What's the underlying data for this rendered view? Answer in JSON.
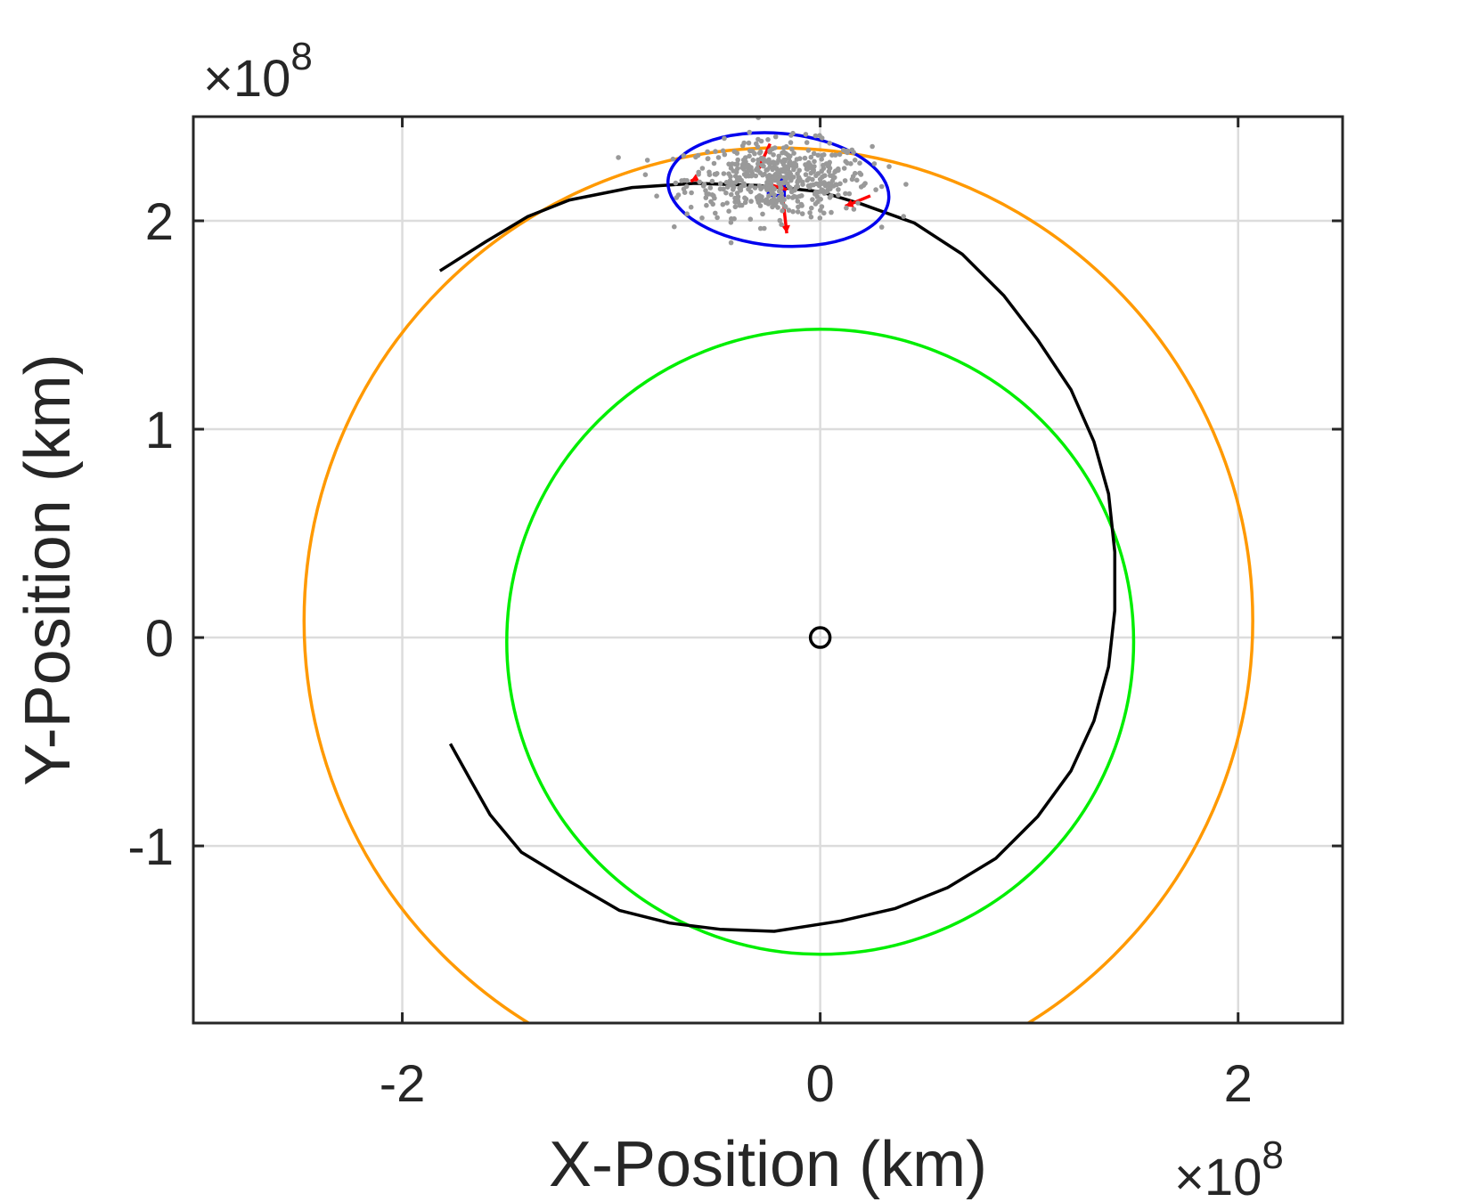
{
  "chart_data": {
    "type": "line",
    "title": "",
    "xlabel": "X-Position (km)",
    "ylabel": "Y-Position (km)",
    "x_exponent_label": "×10",
    "x_exponent_power": "8",
    "y_exponent_label": "×10",
    "y_exponent_power": "8",
    "xlim": [
      -300000000,
      250000000
    ],
    "ylim": [
      -185000000,
      250000000
    ],
    "xticks": [
      -200000000,
      0,
      200000000
    ],
    "xtick_labels": [
      "-2",
      "0",
      "2"
    ],
    "yticks": [
      -100000000,
      0,
      100000000,
      200000000
    ],
    "ytick_labels": [
      "-1",
      "0",
      "1",
      "2"
    ],
    "grid": true,
    "colors": {
      "orange": "#FF9900",
      "green": "#00EE00",
      "black": "#000000",
      "blue": "#0000EE",
      "red": "#FF0000",
      "gray": "#999999"
    },
    "series": [
      {
        "kind": "circle",
        "color": "orange",
        "center": [
          -20000000,
          8000000
        ],
        "radius": 227000000
      },
      {
        "kind": "circle",
        "color": "green",
        "center": [
          0,
          -2000000
        ],
        "radius": 150000000
      },
      {
        "kind": "polyline",
        "color": "black",
        "points": [
          [
            -182000000,
            176000000
          ],
          [
            -160000000,
            190000000
          ],
          [
            -140000000,
            202000000
          ],
          [
            -120000000,
            210000000
          ],
          [
            -90000000,
            216000000
          ],
          [
            -60000000,
            218000000
          ],
          [
            -30000000,
            217000000
          ],
          [
            0,
            214000000
          ],
          [
            20000000,
            208000000
          ],
          [
            45000000,
            199000000
          ],
          [
            68000000,
            184000000
          ],
          [
            88000000,
            164000000
          ],
          [
            104000000,
            143000000
          ],
          [
            120000000,
            119000000
          ],
          [
            131000000,
            94000000
          ],
          [
            138000000,
            69000000
          ],
          [
            141000000,
            41000000
          ],
          [
            141000000,
            13000000
          ],
          [
            138000000,
            -14000000
          ],
          [
            131000000,
            -40000000
          ],
          [
            120000000,
            -64000000
          ],
          [
            104000000,
            -86000000
          ],
          [
            84000000,
            -106000000
          ],
          [
            61000000,
            -120000000
          ],
          [
            36000000,
            -130000000
          ],
          [
            10000000,
            -136000000
          ],
          [
            -22000000,
            -141000000
          ],
          [
            -48000000,
            -140000000
          ],
          [
            -72000000,
            -137000000
          ],
          [
            -96000000,
            -131000000
          ],
          [
            -120000000,
            -117000000
          ],
          [
            -143000000,
            -103000000
          ],
          [
            -158000000,
            -85000000
          ],
          [
            -167000000,
            -69000000
          ],
          [
            -177000000,
            -51000000
          ]
        ]
      },
      {
        "kind": "ellipse",
        "color": "blue",
        "center": [
          -20000000,
          215000000
        ],
        "rx": 53000000,
        "ry": 27000000,
        "rotation_deg": 5
      },
      {
        "kind": "square_marker",
        "color": "blue",
        "center": [
          -21000000,
          216000000
        ]
      },
      {
        "kind": "circle_marker",
        "color": "black",
        "center": [
          0,
          0
        ]
      },
      {
        "kind": "arrows",
        "color": "red",
        "segments": [
          [
            [
              -24000000,
              237000000
            ],
            [
              -30000000,
              224000000
            ]
          ],
          [
            [
              -26000000,
              218000000
            ],
            [
              -16000000,
              215000000
            ]
          ],
          [
            [
              -18000000,
              212000000
            ],
            [
              -16000000,
              194000000
            ]
          ],
          [
            [
              24000000,
              212000000
            ],
            [
              12000000,
              207000000
            ]
          ],
          [
            [
              -60000000,
              220000000
            ],
            [
              -62000000,
              219000000
            ]
          ]
        ]
      },
      {
        "kind": "scatter_cloud",
        "color": "gray",
        "center": [
          -20000000,
          220000000
        ],
        "spread": [
          22000000,
          9000000
        ],
        "count": 520
      }
    ]
  }
}
